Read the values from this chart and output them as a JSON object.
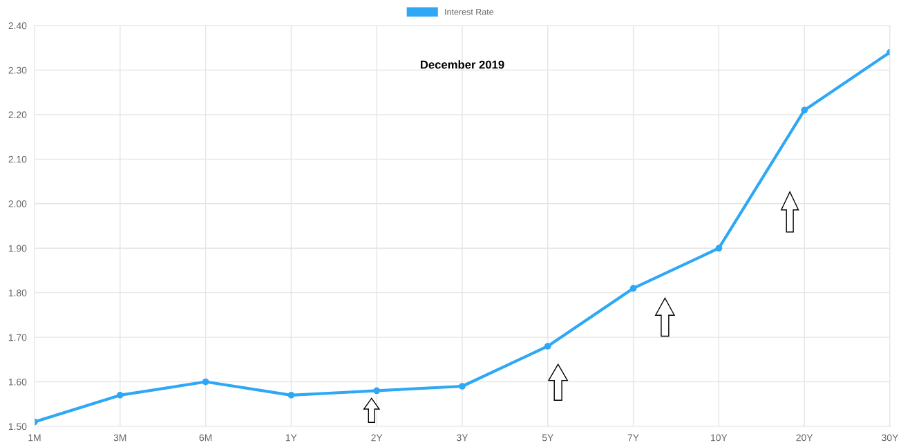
{
  "chart_data": {
    "type": "line",
    "title": "December 2019",
    "categories": [
      "1M",
      "3M",
      "6M",
      "1Y",
      "2Y",
      "3Y",
      "5Y",
      "7Y",
      "10Y",
      "20Y",
      "30Y"
    ],
    "series": [
      {
        "name": "Interest Rate",
        "color": "#2ea8f5",
        "values": [
          1.51,
          1.57,
          1.6,
          1.57,
          1.58,
          1.59,
          1.68,
          1.81,
          1.9,
          2.21,
          2.34
        ]
      }
    ],
    "ylim": [
      1.5,
      2.4
    ],
    "yticks": [
      {
        "value": 1.5,
        "label": "1.50"
      },
      {
        "value": 1.6,
        "label": "1.60"
      },
      {
        "value": 1.7,
        "label": "1.70"
      },
      {
        "value": 1.8,
        "label": "1.80"
      },
      {
        "value": 1.9,
        "label": "1.90"
      },
      {
        "value": 2.0,
        "label": "2.00"
      },
      {
        "value": 2.1,
        "label": "2.10"
      },
      {
        "value": 2.2,
        "label": "2.20"
      },
      {
        "value": 2.3,
        "label": "2.30"
      },
      {
        "value": 2.4,
        "label": "2.40"
      }
    ],
    "grid": true,
    "legend": "top",
    "marker": "circle",
    "line_style": "solid"
  }
}
